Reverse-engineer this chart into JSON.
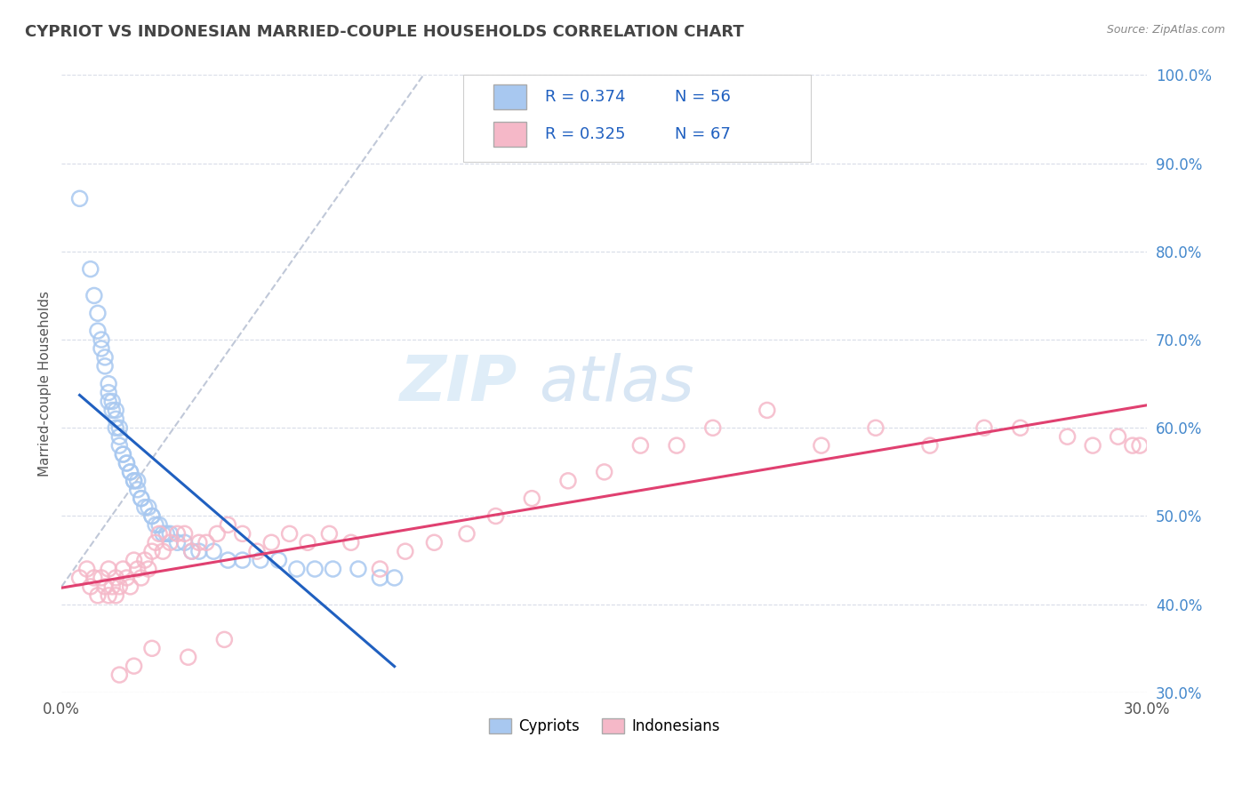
{
  "title": "CYPRIOT VS INDONESIAN MARRIED-COUPLE HOUSEHOLDS CORRELATION CHART",
  "source": "Source: ZipAtlas.com",
  "ylabel": "Married-couple Households",
  "xlim": [
    0.0,
    0.3
  ],
  "ylim": [
    0.3,
    1.0
  ],
  "xticks": [
    0.0,
    0.03,
    0.06,
    0.09,
    0.12,
    0.15,
    0.18,
    0.21,
    0.24,
    0.27,
    0.3
  ],
  "xticklabels_show": {
    "0.0": "0.0%",
    "0.30": "30.0%"
  },
  "yticks": [
    0.3,
    0.4,
    0.5,
    0.6,
    0.7,
    0.8,
    0.9,
    1.0
  ],
  "yticklabels_right": [
    "30.0%",
    "40.0%",
    "50.0%",
    "60.0%",
    "70.0%",
    "80.0%",
    "90.0%",
    "100.0%"
  ],
  "blue_color": "#a8c8f0",
  "pink_color": "#f5b8c8",
  "blue_line_color": "#2060c0",
  "pink_line_color": "#e04070",
  "ref_line_color": "#c0c8d8",
  "legend_label_blue": "Cypriots",
  "legend_label_pink": "Indonesians",
  "legend_R_blue": "0.374",
  "legend_N_blue": "56",
  "legend_R_pink": "0.325",
  "legend_N_pink": "67",
  "background_color": "#ffffff",
  "grid_color": "#d8dce8",
  "title_color": "#444444",
  "cypriot_x": [
    0.005,
    0.008,
    0.009,
    0.01,
    0.01,
    0.011,
    0.011,
    0.012,
    0.012,
    0.013,
    0.013,
    0.013,
    0.014,
    0.014,
    0.015,
    0.015,
    0.015,
    0.016,
    0.016,
    0.016,
    0.017,
    0.017,
    0.018,
    0.018,
    0.019,
    0.019,
    0.02,
    0.02,
    0.021,
    0.021,
    0.022,
    0.022,
    0.023,
    0.024,
    0.025,
    0.025,
    0.026,
    0.027,
    0.028,
    0.029,
    0.03,
    0.032,
    0.034,
    0.036,
    0.038,
    0.042,
    0.046,
    0.05,
    0.055,
    0.06,
    0.065,
    0.07,
    0.075,
    0.082,
    0.088,
    0.092
  ],
  "cypriot_y": [
    0.86,
    0.78,
    0.75,
    0.73,
    0.71,
    0.7,
    0.69,
    0.68,
    0.67,
    0.65,
    0.64,
    0.63,
    0.63,
    0.62,
    0.62,
    0.61,
    0.6,
    0.6,
    0.59,
    0.58,
    0.57,
    0.57,
    0.56,
    0.56,
    0.55,
    0.55,
    0.54,
    0.54,
    0.54,
    0.53,
    0.52,
    0.52,
    0.51,
    0.51,
    0.5,
    0.5,
    0.49,
    0.49,
    0.48,
    0.48,
    0.48,
    0.47,
    0.47,
    0.46,
    0.46,
    0.46,
    0.45,
    0.45,
    0.45,
    0.45,
    0.44,
    0.44,
    0.44,
    0.44,
    0.43,
    0.43
  ],
  "indonesian_x": [
    0.005,
    0.007,
    0.008,
    0.009,
    0.01,
    0.011,
    0.012,
    0.013,
    0.013,
    0.014,
    0.015,
    0.015,
    0.016,
    0.017,
    0.018,
    0.019,
    0.02,
    0.021,
    0.022,
    0.023,
    0.024,
    0.025,
    0.026,
    0.027,
    0.028,
    0.03,
    0.032,
    0.034,
    0.036,
    0.038,
    0.04,
    0.043,
    0.046,
    0.05,
    0.054,
    0.058,
    0.063,
    0.068,
    0.074,
    0.08,
    0.088,
    0.095,
    0.103,
    0.112,
    0.12,
    0.13,
    0.14,
    0.15,
    0.16,
    0.17,
    0.18,
    0.195,
    0.21,
    0.225,
    0.24,
    0.255,
    0.265,
    0.278,
    0.285,
    0.292,
    0.296,
    0.298,
    0.016,
    0.02,
    0.025,
    0.035,
    0.045
  ],
  "indonesian_y": [
    0.43,
    0.44,
    0.42,
    0.43,
    0.41,
    0.43,
    0.42,
    0.41,
    0.44,
    0.42,
    0.41,
    0.43,
    0.42,
    0.44,
    0.43,
    0.42,
    0.45,
    0.44,
    0.43,
    0.45,
    0.44,
    0.46,
    0.47,
    0.48,
    0.46,
    0.47,
    0.48,
    0.48,
    0.46,
    0.47,
    0.47,
    0.48,
    0.49,
    0.48,
    0.46,
    0.47,
    0.48,
    0.47,
    0.48,
    0.47,
    0.44,
    0.46,
    0.47,
    0.48,
    0.5,
    0.52,
    0.54,
    0.55,
    0.58,
    0.58,
    0.6,
    0.62,
    0.58,
    0.6,
    0.58,
    0.6,
    0.6,
    0.59,
    0.58,
    0.59,
    0.58,
    0.58,
    0.32,
    0.33,
    0.35,
    0.34,
    0.36
  ]
}
